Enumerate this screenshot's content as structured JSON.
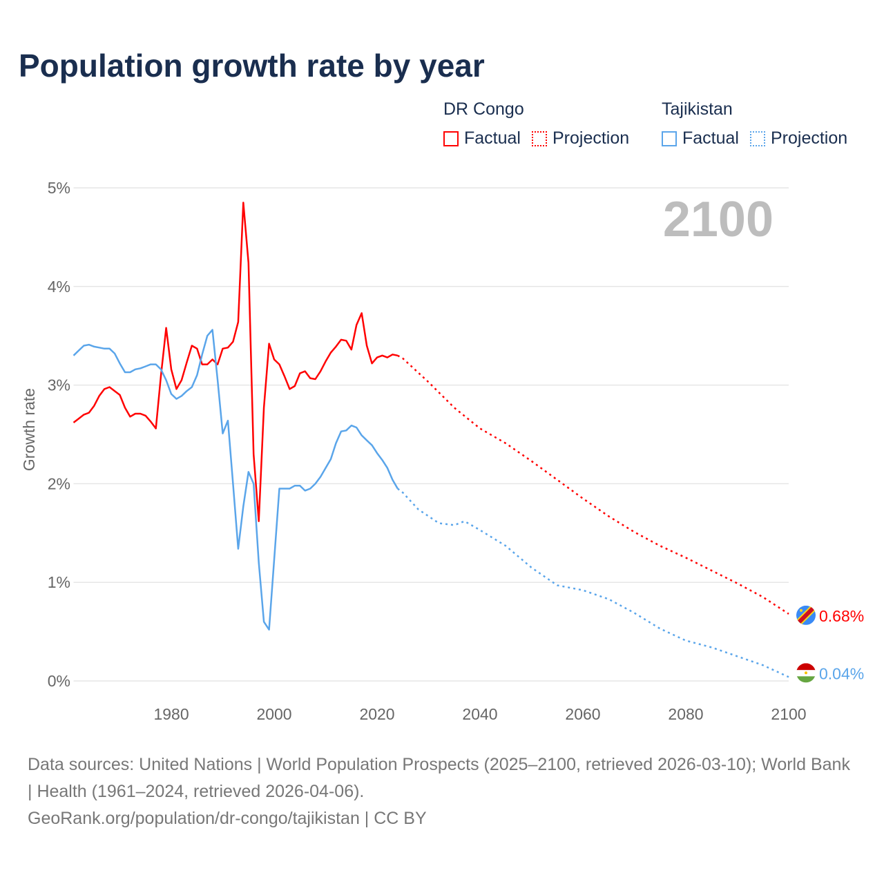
{
  "title": "Population growth rate by year",
  "legend": {
    "groups": [
      {
        "country": "DR Congo",
        "factual": "Factual",
        "projection": "Projection",
        "color": "#ff0000"
      },
      {
        "country": "Tajikistan",
        "factual": "Factual",
        "projection": "Projection",
        "color": "#5aa5ea"
      }
    ]
  },
  "year_watermark": "2100",
  "footer": {
    "line1": "Data sources: United Nations | World Population Prospects (2025–2100, retrieved 2026-03-10); World Bank | Health (1961–2024, retrieved 2026-04-06).",
    "line2": "GeoRank.org/population/dr-congo/tajikistan | CC BY"
  },
  "chart_data": {
    "type": "line",
    "title": "Population growth rate by year",
    "xlabel": "",
    "ylabel": "Growth rate",
    "xlim": [
      1961,
      2100
    ],
    "ylim": [
      0,
      5
    ],
    "x_ticks": [
      "1980",
      "2000",
      "2020",
      "2040",
      "2060",
      "2080",
      "2100"
    ],
    "y_ticks": [
      "0%",
      "1%",
      "2%",
      "3%",
      "4%",
      "5%"
    ],
    "grid": true,
    "series": [
      {
        "name": "DR Congo",
        "color": "#ff0000",
        "end_label": "0.68%",
        "factual": {
          "x": [
            1961,
            1962,
            1963,
            1964,
            1965,
            1966,
            1967,
            1968,
            1969,
            1970,
            1971,
            1972,
            1973,
            1974,
            1975,
            1976,
            1977,
            1978,
            1979,
            1980,
            1981,
            1982,
            1983,
            1984,
            1985,
            1986,
            1987,
            1988,
            1989,
            1990,
            1991,
            1992,
            1993,
            1994,
            1995,
            1996,
            1997,
            1998,
            1999,
            2000,
            2001,
            2002,
            2003,
            2004,
            2005,
            2006,
            2007,
            2008,
            2009,
            2010,
            2011,
            2012,
            2013,
            2014,
            2015,
            2016,
            2017,
            2018,
            2019,
            2020,
            2021,
            2022,
            2023,
            2024
          ],
          "y": [
            2.62,
            2.66,
            2.7,
            2.72,
            2.79,
            2.89,
            2.96,
            2.98,
            2.94,
            2.9,
            2.77,
            2.68,
            2.71,
            2.71,
            2.69,
            2.63,
            2.56,
            3.1,
            3.58,
            3.16,
            2.96,
            3.05,
            3.23,
            3.4,
            3.37,
            3.21,
            3.21,
            3.26,
            3.21,
            3.37,
            3.38,
            3.44,
            3.64,
            4.85,
            4.24,
            2.3,
            1.62,
            2.77,
            3.42,
            3.26,
            3.21,
            3.09,
            2.96,
            2.99,
            3.12,
            3.14,
            3.07,
            3.06,
            3.14,
            3.24,
            3.33,
            3.39,
            3.46,
            3.45,
            3.36,
            3.61,
            3.73,
            3.4,
            3.22,
            3.28,
            3.3,
            3.28,
            3.31,
            3.3
          ]
        },
        "projection": {
          "x": [
            2024,
            2025,
            2030,
            2035,
            2040,
            2045,
            2050,
            2055,
            2060,
            2065,
            2070,
            2075,
            2080,
            2085,
            2090,
            2095,
            2100
          ],
          "y": [
            3.3,
            3.27,
            3.03,
            2.77,
            2.56,
            2.41,
            2.23,
            2.04,
            1.85,
            1.67,
            1.51,
            1.37,
            1.25,
            1.12,
            0.99,
            0.85,
            0.68
          ]
        }
      },
      {
        "name": "Tajikistan",
        "color": "#5aa5ea",
        "end_label": "0.04%",
        "factual": {
          "x": [
            1961,
            1962,
            1963,
            1964,
            1965,
            1966,
            1967,
            1968,
            1969,
            1970,
            1971,
            1972,
            1973,
            1974,
            1975,
            1976,
            1977,
            1978,
            1979,
            1980,
            1981,
            1982,
            1983,
            1984,
            1985,
            1986,
            1987,
            1988,
            1989,
            1990,
            1991,
            1992,
            1993,
            1994,
            1995,
            1996,
            1997,
            1998,
            1999,
            2000,
            2001,
            2002,
            2003,
            2004,
            2005,
            2006,
            2007,
            2008,
            2009,
            2010,
            2011,
            2012,
            2013,
            2014,
            2015,
            2016,
            2017,
            2018,
            2019,
            2020,
            2021,
            2022,
            2023,
            2024
          ],
          "y": [
            3.3,
            3.35,
            3.4,
            3.41,
            3.39,
            3.38,
            3.37,
            3.37,
            3.32,
            3.22,
            3.13,
            3.13,
            3.16,
            3.17,
            3.19,
            3.21,
            3.21,
            3.16,
            3.05,
            2.91,
            2.86,
            2.89,
            2.94,
            2.98,
            3.1,
            3.31,
            3.5,
            3.56,
            3.05,
            2.51,
            2.64,
            2.0,
            1.34,
            1.77,
            2.12,
            2.0,
            1.2,
            0.6,
            0.52,
            1.23,
            1.95,
            1.95,
            1.95,
            1.98,
            1.98,
            1.93,
            1.95,
            2.0,
            2.07,
            2.16,
            2.25,
            2.41,
            2.53,
            2.54,
            2.59,
            2.57,
            2.49,
            2.44,
            2.39,
            2.31,
            2.24,
            2.16,
            2.04,
            1.95
          ]
        },
        "projection": {
          "x": [
            2024,
            2025,
            2028,
            2030,
            2032,
            2035,
            2037,
            2040,
            2045,
            2050,
            2055,
            2060,
            2065,
            2070,
            2075,
            2080,
            2085,
            2090,
            2095,
            2100
          ],
          "y": [
            1.95,
            1.91,
            1.74,
            1.67,
            1.6,
            1.58,
            1.62,
            1.53,
            1.37,
            1.15,
            0.97,
            0.92,
            0.83,
            0.69,
            0.53,
            0.41,
            0.34,
            0.25,
            0.16,
            0.04
          ]
        }
      }
    ]
  }
}
